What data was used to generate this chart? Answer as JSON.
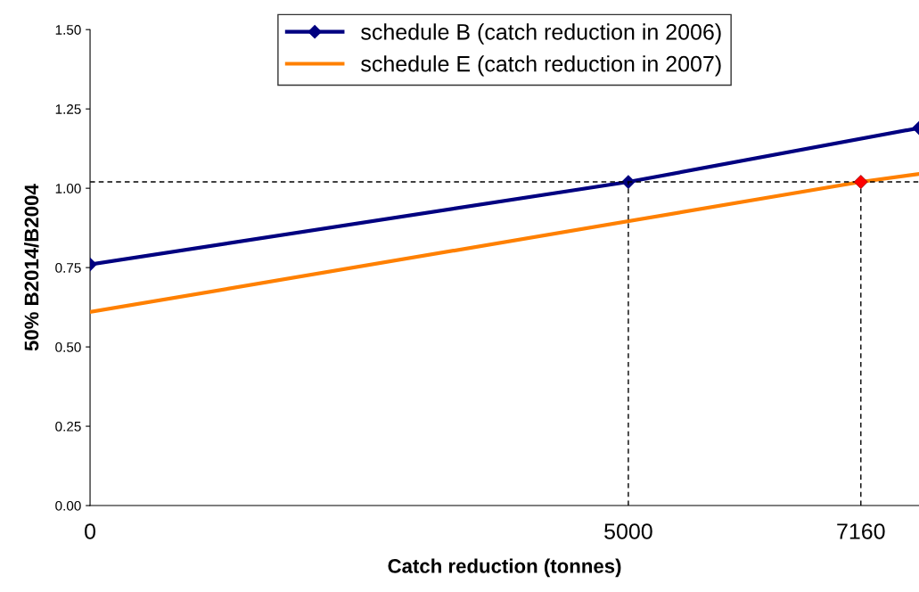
{
  "chart_data": {
    "type": "line",
    "xlabel": "Catch reduction (tonnes)",
    "ylabel": "50% B2014/B2004",
    "xlim": [
      0,
      7700
    ],
    "xticks": [
      0,
      5000,
      7160
    ],
    "ylim": [
      0,
      1.5
    ],
    "yticks": [
      {
        "value": 0,
        "label": "0.00"
      },
      {
        "value": 0.25,
        "label": "0.25"
      },
      {
        "value": 0.5,
        "label": "0.50"
      },
      {
        "value": 0.75,
        "label": "0.75"
      },
      {
        "value": 1.0,
        "label": "1.00"
      },
      {
        "value": 1.25,
        "label": "1.25"
      },
      {
        "value": 1.5,
        "label": "1.50"
      }
    ],
    "grid": false,
    "legend": "top",
    "line_style": "solid",
    "series": [
      {
        "name": "schedule B (catch reduction in 2006)",
        "color": "#000080",
        "marker": "diamond",
        "x": [
          0,
          5000,
          7700
        ],
        "values": [
          0.76,
          1.02,
          1.19
        ]
      },
      {
        "name": "schedule E (catch reduction in 2007)",
        "color": "#ff8000",
        "marker": "none",
        "x": [
          0,
          7160,
          7700
        ],
        "values": [
          0.61,
          1.02,
          1.045
        ]
      },
      {
        "type": "scatter",
        "color": "#ff0000",
        "marker": "diamond",
        "x": [
          7160
        ],
        "values": [
          1.02
        ]
      },
      {
        "color": "#000000",
        "line_style": "dashed",
        "marker": "none",
        "x": [
          0,
          7700
        ],
        "values": [
          1.02,
          1.02
        ]
      },
      {
        "color": "#000000",
        "line_style": "dashed",
        "marker": "none",
        "x": [
          5000,
          5000
        ],
        "values": [
          0,
          1.02
        ]
      },
      {
        "color": "#000000",
        "line_style": "dashed",
        "marker": "none",
        "x": [
          7160,
          7160
        ],
        "values": [
          0,
          1.02
        ]
      }
    ]
  }
}
